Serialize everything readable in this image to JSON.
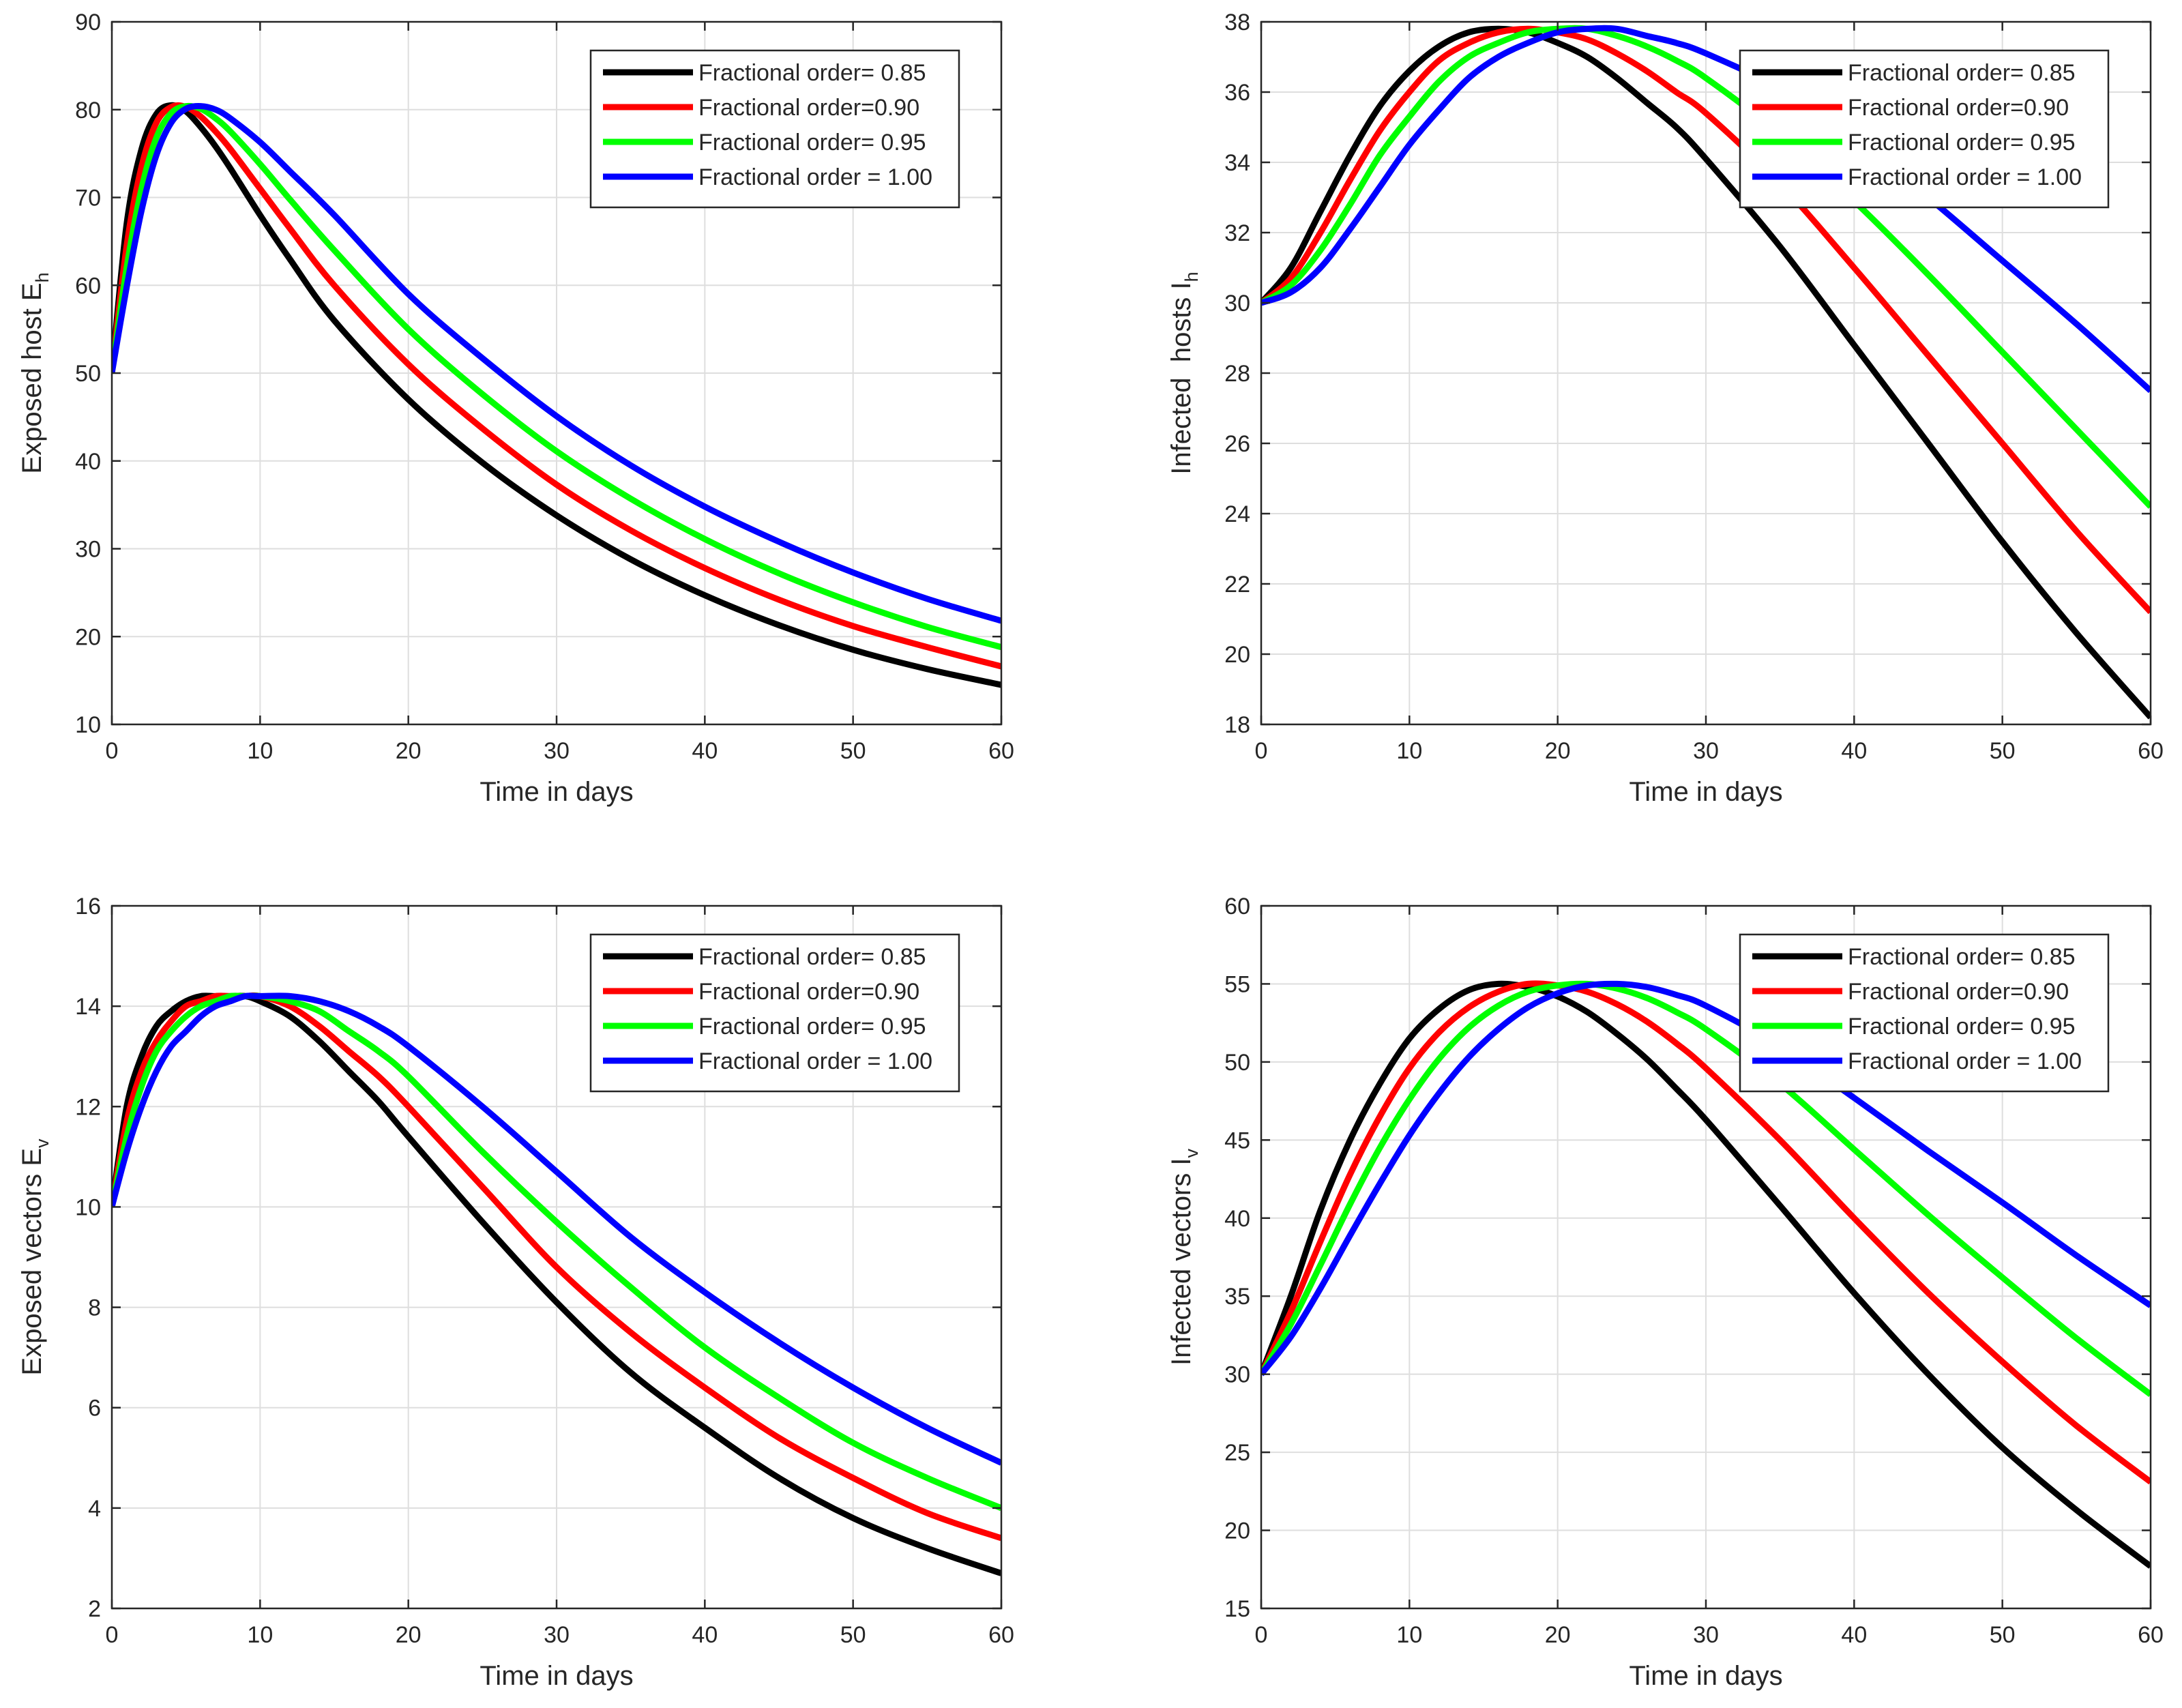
{
  "chart_data": [
    {
      "type": "line",
      "title": "",
      "xlabel": "Time in days",
      "ylabel": "Exposed host E",
      "ylabel_sub": "h",
      "xlim": [
        0,
        60
      ],
      "ylim": [
        10,
        90
      ],
      "xticks": [
        0,
        10,
        20,
        30,
        40,
        50,
        60
      ],
      "yticks": [
        10,
        20,
        30,
        40,
        50,
        60,
        70,
        80,
        90
      ],
      "grid": true,
      "legend_position": "top-right",
      "x": [
        0,
        1,
        2,
        3,
        4,
        5,
        6,
        7,
        8,
        10,
        12,
        15,
        20,
        25,
        30,
        35,
        40,
        45,
        50,
        55,
        60
      ],
      "series": [
        {
          "name": "Fractional order= 0.85",
          "color": "#000000",
          "values": [
            50.0,
            67.0,
            75.5,
            79.5,
            80.5,
            79.8,
            78.0,
            75.8,
            73.3,
            68.0,
            63.0,
            56.0,
            47.0,
            39.8,
            33.8,
            28.8,
            24.7,
            21.3,
            18.5,
            16.3,
            14.5
          ]
        },
        {
          "name": "Fractional order=0.90",
          "color": "#ff0000",
          "values": [
            50.0,
            64.5,
            73.5,
            78.5,
            80.3,
            80.3,
            79.2,
            77.5,
            75.5,
            71.0,
            66.5,
            60.0,
            51.0,
            43.7,
            37.3,
            32.1,
            27.8,
            24.2,
            21.2,
            18.8,
            16.6
          ]
        },
        {
          "name": "Fractional order= 0.95",
          "color": "#00ff00",
          "values": [
            50.0,
            62.0,
            71.0,
            76.8,
            79.6,
            80.4,
            80.1,
            79.0,
            77.5,
            73.8,
            69.8,
            64.0,
            55.0,
            47.6,
            41.1,
            35.7,
            31.1,
            27.2,
            23.9,
            21.1,
            18.8
          ]
        },
        {
          "name": "Fractional order = 1.00",
          "color": "#0000ff",
          "values": [
            50.0,
            59.8,
            68.5,
            74.8,
            78.5,
            80.1,
            80.4,
            80.0,
            79.0,
            76.3,
            73.0,
            68.0,
            59.0,
            51.7,
            45.1,
            39.5,
            34.8,
            30.8,
            27.3,
            24.3,
            21.8
          ]
        }
      ]
    },
    {
      "type": "line",
      "title": "",
      "xlabel": "Time in days",
      "ylabel": "Infected  hosts I",
      "ylabel_sub": "h",
      "xlim": [
        0,
        60
      ],
      "ylim": [
        18,
        38
      ],
      "xticks": [
        0,
        10,
        20,
        30,
        40,
        50,
        60
      ],
      "yticks": [
        18,
        20,
        22,
        24,
        26,
        28,
        30,
        32,
        34,
        36,
        38
      ],
      "grid": true,
      "legend_position": "top-right",
      "x": [
        0,
        2,
        4,
        6,
        8,
        10,
        12,
        14,
        16,
        18,
        20,
        22,
        24,
        26,
        28,
        30,
        35,
        40,
        45,
        50,
        55,
        60
      ],
      "series": [
        {
          "name": "Fractional order= 0.85",
          "color": "#000000",
          "values": [
            30.0,
            31.0,
            32.6,
            34.2,
            35.6,
            36.6,
            37.3,
            37.7,
            37.8,
            37.7,
            37.4,
            37.0,
            36.4,
            35.7,
            35.0,
            34.1,
            31.6,
            28.8,
            26.0,
            23.2,
            20.6,
            18.2
          ]
        },
        {
          "name": "Fractional order=0.90",
          "color": "#ff0000",
          "values": [
            30.0,
            30.7,
            32.0,
            33.5,
            34.9,
            36.0,
            36.9,
            37.4,
            37.7,
            37.8,
            37.7,
            37.5,
            37.1,
            36.6,
            36.0,
            35.4,
            33.4,
            31.0,
            28.5,
            26.0,
            23.5,
            21.2
          ]
        },
        {
          "name": "Fractional order= 0.95",
          "color": "#00ff00",
          "values": [
            30.0,
            30.5,
            31.5,
            32.8,
            34.2,
            35.3,
            36.3,
            37.0,
            37.4,
            37.7,
            37.8,
            37.8,
            37.6,
            37.3,
            36.9,
            36.4,
            34.8,
            32.9,
            30.8,
            28.6,
            26.4,
            24.2
          ]
        },
        {
          "name": "Fractional order = 1.00",
          "color": "#0000ff",
          "values": [
            30.0,
            30.3,
            31.0,
            32.1,
            33.3,
            34.5,
            35.5,
            36.4,
            37.0,
            37.4,
            37.7,
            37.8,
            37.8,
            37.6,
            37.4,
            37.1,
            36.1,
            34.7,
            33.0,
            31.2,
            29.4,
            27.5
          ]
        }
      ]
    },
    {
      "type": "line",
      "title": "",
      "xlabel": "Time in days",
      "ylabel": "Exposed vectors E",
      "ylabel_sub": "v",
      "xlim": [
        0,
        60
      ],
      "ylim": [
        2,
        16
      ],
      "xticks": [
        0,
        10,
        20,
        30,
        40,
        50,
        60
      ],
      "yticks": [
        2,
        4,
        6,
        8,
        10,
        12,
        14,
        16
      ],
      "grid": true,
      "legend_position": "top-right",
      "x": [
        0,
        1,
        2,
        3,
        4,
        5,
        6,
        7,
        8,
        9,
        10,
        12,
        14,
        16,
        18,
        20,
        25,
        30,
        35,
        40,
        45,
        50,
        55,
        60
      ],
      "series": [
        {
          "name": "Fractional order= 0.85",
          "color": "#000000",
          "values": [
            10.0,
            12.0,
            13.0,
            13.6,
            13.9,
            14.1,
            14.2,
            14.2,
            14.2,
            14.2,
            14.1,
            13.8,
            13.3,
            12.7,
            12.1,
            11.4,
            9.7,
            8.1,
            6.7,
            5.6,
            4.6,
            3.8,
            3.2,
            2.7
          ]
        },
        {
          "name": "Fractional order=0.90",
          "color": "#ff0000",
          "values": [
            10.0,
            11.7,
            12.7,
            13.3,
            13.7,
            14.0,
            14.1,
            14.2,
            14.2,
            14.2,
            14.2,
            14.0,
            13.6,
            13.1,
            12.6,
            12.0,
            10.4,
            8.8,
            7.5,
            6.4,
            5.4,
            4.6,
            3.9,
            3.4
          ]
        },
        {
          "name": "Fractional order= 0.95",
          "color": "#00ff00",
          "values": [
            10.0,
            11.4,
            12.4,
            13.1,
            13.5,
            13.8,
            14.0,
            14.1,
            14.2,
            14.2,
            14.2,
            14.1,
            13.9,
            13.5,
            13.1,
            12.6,
            11.1,
            9.7,
            8.4,
            7.2,
            6.2,
            5.3,
            4.6,
            4.0
          ]
        },
        {
          "name": "Fractional order = 1.00",
          "color": "#0000ff",
          "values": [
            10.0,
            11.1,
            12.0,
            12.7,
            13.2,
            13.5,
            13.8,
            14.0,
            14.1,
            14.2,
            14.2,
            14.2,
            14.1,
            13.9,
            13.6,
            13.2,
            12.0,
            10.7,
            9.4,
            8.3,
            7.3,
            6.4,
            5.6,
            4.9
          ]
        }
      ]
    },
    {
      "type": "line",
      "title": "",
      "xlabel": "Time in days",
      "ylabel": "Infected vectors I",
      "ylabel_sub": "v",
      "xlim": [
        0,
        60
      ],
      "ylim": [
        15,
        60
      ],
      "xticks": [
        0,
        10,
        20,
        30,
        40,
        50,
        60
      ],
      "yticks": [
        15,
        20,
        25,
        30,
        35,
        40,
        45,
        50,
        55,
        60
      ],
      "grid": true,
      "legend_position": "top-right",
      "x": [
        0,
        2,
        4,
        6,
        8,
        10,
        12,
        14,
        16,
        18,
        20,
        22,
        24,
        26,
        28,
        30,
        35,
        40,
        45,
        50,
        55,
        60
      ],
      "series": [
        {
          "name": "Fractional order= 0.85",
          "color": "#000000",
          "values": [
            30.0,
            35.0,
            40.5,
            45.0,
            48.6,
            51.5,
            53.4,
            54.6,
            55.0,
            54.8,
            54.2,
            53.2,
            51.8,
            50.2,
            48.3,
            46.3,
            40.8,
            35.2,
            30.0,
            25.3,
            21.3,
            17.7
          ]
        },
        {
          "name": "Fractional order=0.90",
          "color": "#ff0000",
          "values": [
            30.0,
            34.0,
            38.5,
            42.8,
            46.5,
            49.6,
            51.9,
            53.5,
            54.5,
            55.0,
            54.9,
            54.5,
            53.7,
            52.6,
            51.2,
            49.6,
            45.0,
            40.0,
            35.2,
            30.8,
            26.7,
            23.1
          ]
        },
        {
          "name": "Fractional order= 0.95",
          "color": "#00ff00",
          "values": [
            30.0,
            33.2,
            37.0,
            40.9,
            44.5,
            47.6,
            50.2,
            52.2,
            53.6,
            54.5,
            54.9,
            55.0,
            54.7,
            54.1,
            53.2,
            52.1,
            48.6,
            44.4,
            40.2,
            36.2,
            32.3,
            28.7
          ]
        },
        {
          "name": "Fractional order = 1.00",
          "color": "#0000ff",
          "values": [
            30.0,
            32.4,
            35.5,
            38.9,
            42.2,
            45.3,
            48.0,
            50.3,
            52.1,
            53.5,
            54.4,
            54.9,
            55.0,
            54.8,
            54.3,
            53.6,
            51.0,
            47.7,
            44.3,
            41.0,
            37.6,
            34.4
          ]
        }
      ]
    }
  ]
}
